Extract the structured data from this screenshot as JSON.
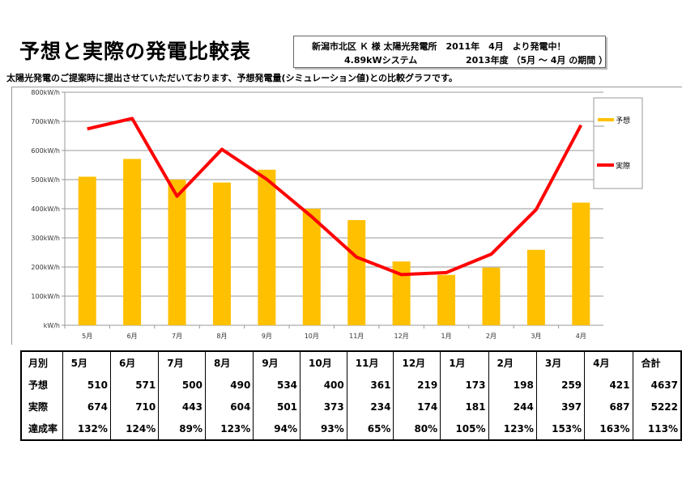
{
  "title": "予想と実際の発電比較表",
  "info": {
    "line1": "新潟市北区 Ｋ 様 太陽光発電所　2011年　4月　より発電中！",
    "line2a": "4.89kWシステム",
    "line2b": "2013年度 （5月 ～ 4月 の期間 ）"
  },
  "subtitle": "太陽光発電のご提案時に提出させていただいております、予想発電量(シミュレーション値)との比較グラフです。",
  "chart_data": {
    "type": "bar+line",
    "categories": [
      "5月",
      "6月",
      "7月",
      "8月",
      "9月",
      "10月",
      "11月",
      "12月",
      "1月",
      "2月",
      "3月",
      "4月"
    ],
    "y_ticks": [
      "kW/h",
      "100kW/h",
      "200kW/h",
      "300kW/h",
      "400kW/h",
      "500kW/h",
      "600kW/h",
      "700kW/h",
      "800kW/h"
    ],
    "ylim": [
      0,
      800
    ],
    "series": [
      {
        "name": "予想",
        "type": "bar",
        "color": "#FFC000",
        "values": [
          510,
          571,
          500,
          490,
          534,
          400,
          361,
          219,
          173,
          198,
          259,
          421
        ]
      },
      {
        "name": "実際",
        "type": "line",
        "color": "#FF0000",
        "values": [
          674,
          710,
          443,
          604,
          501,
          373,
          234,
          174,
          181,
          244,
          397,
          687
        ]
      }
    ],
    "legend": "right",
    "grid": "horizontal"
  },
  "table": {
    "header": [
      "月別",
      "5月",
      "6月",
      "7月",
      "8月",
      "9月",
      "10月",
      "11月",
      "12月",
      "1月",
      "2月",
      "3月",
      "4月",
      "合計"
    ],
    "rows": [
      [
        "予想",
        "510",
        "571",
        "500",
        "490",
        "534",
        "400",
        "361",
        "219",
        "173",
        "198",
        "259",
        "421",
        "4637"
      ],
      [
        "実際",
        "674",
        "710",
        "443",
        "604",
        "501",
        "373",
        "234",
        "174",
        "181",
        "244",
        "397",
        "687",
        "5222"
      ],
      [
        "達成率",
        "132%",
        "124%",
        "89%",
        "123%",
        "94%",
        "93%",
        "65%",
        "80%",
        "105%",
        "123%",
        "153%",
        "163%",
        "113%"
      ]
    ]
  }
}
